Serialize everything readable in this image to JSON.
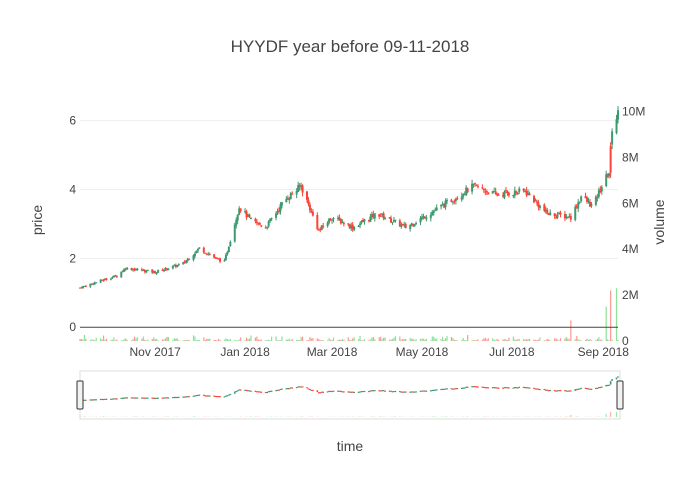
{
  "chart_data": {
    "type": "candlestick",
    "title": "HYYDF year before 09-11-2018",
    "xlabel": "time",
    "ylabel": "price",
    "y2label": "volume",
    "x_range": [
      "2017-09-11",
      "2018-09-11"
    ],
    "ylim": [
      -0.4,
      6.6
    ],
    "y2lim": [
      0,
      10500000
    ],
    "yticks": [
      0,
      2,
      4,
      6
    ],
    "y2ticks": [
      {
        "v": 0,
        "label": "0"
      },
      {
        "v": 2000000,
        "label": "2M"
      },
      {
        "v": 4000000,
        "label": "4M"
      },
      {
        "v": 6000000,
        "label": "6M"
      },
      {
        "v": 8000000,
        "label": "8M"
      },
      {
        "v": 10000000,
        "label": "10M"
      }
    ],
    "xticks": [
      {
        "date": "2017-11-01",
        "label": "Nov 2017"
      },
      {
        "date": "2018-01-01",
        "label": "Jan 2018"
      },
      {
        "date": "2018-03-01",
        "label": "Mar 2018"
      },
      {
        "date": "2018-05-01",
        "label": "May 2018"
      },
      {
        "date": "2018-07-01",
        "label": "Jul 2018"
      },
      {
        "date": "2018-09-01",
        "label": "Sep 2018"
      }
    ],
    "price_anchors": [
      {
        "date": "2017-09-11",
        "close": 1.15
      },
      {
        "date": "2017-09-25",
        "close": 1.35
      },
      {
        "date": "2017-10-06",
        "close": 1.5
      },
      {
        "date": "2017-10-12",
        "close": 1.72
      },
      {
        "date": "2017-11-01",
        "close": 1.6
      },
      {
        "date": "2017-11-20",
        "close": 1.85
      },
      {
        "date": "2017-12-01",
        "close": 2.3
      },
      {
        "date": "2017-12-12",
        "close": 2.0
      },
      {
        "date": "2017-12-18",
        "close": 1.9
      },
      {
        "date": "2017-12-28",
        "close": 3.5
      },
      {
        "date": "2018-01-05",
        "close": 3.1
      },
      {
        "date": "2018-01-15",
        "close": 2.9
      },
      {
        "date": "2018-01-28",
        "close": 3.7
      },
      {
        "date": "2018-02-08",
        "close": 4.1
      },
      {
        "date": "2018-02-20",
        "close": 2.8
      },
      {
        "date": "2018-03-01",
        "close": 3.2
      },
      {
        "date": "2018-03-15",
        "close": 2.9
      },
      {
        "date": "2018-04-01",
        "close": 3.3
      },
      {
        "date": "2018-04-20",
        "close": 2.9
      },
      {
        "date": "2018-05-10",
        "close": 3.4
      },
      {
        "date": "2018-06-05",
        "close": 4.1
      },
      {
        "date": "2018-06-20",
        "close": 3.85
      },
      {
        "date": "2018-07-10",
        "close": 3.95
      },
      {
        "date": "2018-07-25",
        "close": 3.3
      },
      {
        "date": "2018-08-10",
        "close": 3.2
      },
      {
        "date": "2018-08-17",
        "close": 3.8
      },
      {
        "date": "2018-08-25",
        "close": 3.5
      },
      {
        "date": "2018-09-01",
        "close": 4.2
      },
      {
        "date": "2018-09-05",
        "close": 4.5
      },
      {
        "date": "2018-09-07",
        "close": 5.8
      },
      {
        "date": "2018-09-11",
        "close": 6.2
      }
    ],
    "volume_spikes": [
      {
        "date": "2018-08-10",
        "volume": 900000,
        "up": false
      },
      {
        "date": "2018-09-03",
        "volume": 1500000,
        "up": true
      },
      {
        "date": "2018-09-06",
        "volume": 2200000,
        "up": false
      },
      {
        "date": "2018-09-10",
        "volume": 2300000,
        "up": true
      }
    ],
    "colors": {
      "increasing": "#3D9970",
      "decreasing": "#FF4136",
      "volume_increasing": "#2ECC40",
      "volume_decreasing": "#FF4136",
      "grid": "#eeeeee",
      "axis_text": "#444444",
      "zero_line": "#444444"
    }
  }
}
